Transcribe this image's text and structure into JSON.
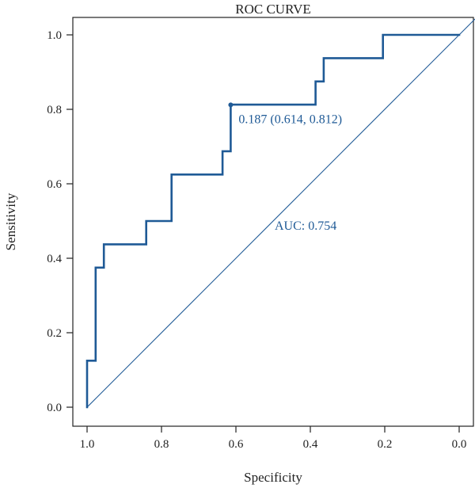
{
  "chart_data": {
    "type": "line",
    "title": "ROC CURVE",
    "xlabel": "Specificity",
    "ylabel": "Sensitivity",
    "x_reversed": true,
    "xlim": [
      1.0,
      0.0
    ],
    "ylim": [
      0.0,
      1.0
    ],
    "x_ticks": [
      "1.0",
      "0.8",
      "0.6",
      "0.4",
      "0.2",
      "0.0"
    ],
    "y_ticks": [
      "0.0",
      "0.2",
      "0.4",
      "0.6",
      "0.8",
      "1.0"
    ],
    "grid": false,
    "series": [
      {
        "color": "#1f5a96",
        "specificity": [
          1.0,
          1.0,
          0.977,
          0.977,
          0.955,
          0.955,
          0.841,
          0.841,
          0.773,
          0.773,
          0.636,
          0.636,
          0.614,
          0.614,
          0.386,
          0.386,
          0.364,
          0.364,
          0.205,
          0.205,
          0.0
        ],
        "sensitivity": [
          0.0,
          0.125,
          0.125,
          0.375,
          0.375,
          0.4375,
          0.4375,
          0.5,
          0.5,
          0.625,
          0.625,
          0.6875,
          0.6875,
          0.8125,
          0.8125,
          0.875,
          0.875,
          0.9375,
          0.9375,
          1.0,
          1.0
        ]
      }
    ],
    "reference_line": {
      "from": [
        1.0,
        0.0
      ],
      "to": [
        0.0,
        1.0
      ],
      "color": "#1f5a96"
    },
    "threshold_point": {
      "specificity": 0.614,
      "sensitivity": 0.812,
      "label": "0.187 (0.614, 0.812)",
      "color": "#1f5a96"
    },
    "auc": {
      "label": "AUC: 0.754",
      "value": 0.754,
      "color": "#1f5a96"
    }
  }
}
